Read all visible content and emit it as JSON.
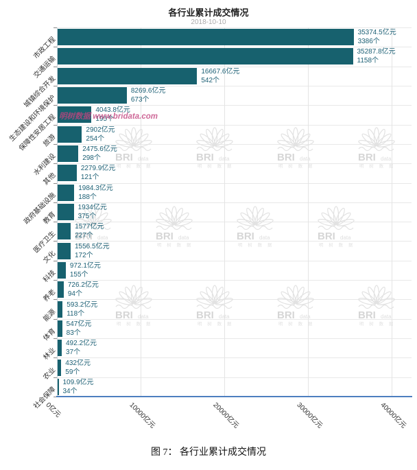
{
  "caption": "图 7： 各行业累计成交情况",
  "watermark": {
    "logo_text_bold": "BRI",
    "logo_text_light": "data",
    "logo_subtext": "明 树 数 据",
    "diagonal_text": "明树数据 www.bridata.com",
    "logo_color": "#e0e0e0",
    "diagonal_color": "#c2437e"
  },
  "style": {
    "bar_color": "#17616e",
    "value_label_color": "#1d6075",
    "axis_line_color": "#4d7ebf",
    "grid_color": "#e8e8e8"
  },
  "chart_data": {
    "type": "bar",
    "orientation": "horizontal",
    "title": "各行业累计成交情况",
    "subtitle": "2018-10-10",
    "value_unit": "亿元",
    "count_unit": "个",
    "xlim": [
      0,
      40000
    ],
    "x_ticks": [
      0,
      10000,
      20000,
      30000,
      40000
    ],
    "x_tick_labels": [
      "0亿元",
      "10000亿元",
      "20000亿元",
      "30000亿元",
      "40000亿元"
    ],
    "grid": true,
    "legend": false,
    "categories": [
      "市政工程",
      "交通运输",
      "城镇综合开发",
      "生态建设和环境保护",
      "保障性安居工程",
      "旅游",
      "水利建设",
      "其他",
      "政府基础设施",
      "教育",
      "医疗卫生",
      "文化",
      "科技",
      "养老",
      "能源",
      "体育",
      "林业",
      "农业",
      "社会保障"
    ],
    "bars": [
      {
        "category": "市政工程",
        "value": 35374.5,
        "count": 3386,
        "value_label": "35374.5亿元",
        "count_label": "3386个"
      },
      {
        "category": "交通运输",
        "value": 35287.8,
        "count": 1158,
        "value_label": "35287.8亿元",
        "count_label": "1158个"
      },
      {
        "category": "城镇综合开发",
        "value": 16667.6,
        "count": 542,
        "value_label": "16667.6亿元",
        "count_label": "542个"
      },
      {
        "category": "生态建设和环境保护",
        "value": 8269.6,
        "count": 673,
        "value_label": "8269.6亿元",
        "count_label": "673个"
      },
      {
        "category": "保障性安居工程",
        "value": 4043.8,
        "count": 195,
        "value_label": "4043.8亿元",
        "count_label": "195个"
      },
      {
        "category": "旅游",
        "value": 2902,
        "count": 254,
        "value_label": "2902亿元",
        "count_label": "254个"
      },
      {
        "category": "水利建设",
        "value": 2475.6,
        "count": 298,
        "value_label": "2475.6亿元",
        "count_label": "298个"
      },
      {
        "category": "其他",
        "value": 2279.9,
        "count": 121,
        "value_label": "2279.9亿元",
        "count_label": "121个"
      },
      {
        "category": "政府基础设施",
        "value": 1984.3,
        "count": 188,
        "value_label": "1984.3亿元",
        "count_label": "188个"
      },
      {
        "category": "教育",
        "value": 1934,
        "count": 375,
        "value_label": "1934亿元",
        "count_label": "375个"
      },
      {
        "category": "医疗卫生",
        "value": 1577,
        "count": 227,
        "value_label": "1577亿元",
        "count_label": "227个"
      },
      {
        "category": "文化",
        "value": 1556.5,
        "count": 172,
        "value_label": "1556.5亿元",
        "count_label": "172个"
      },
      {
        "category": "科技",
        "value": 972.1,
        "count": 155,
        "value_label": "972.1亿元",
        "count_label": "155个"
      },
      {
        "category": "养老",
        "value": 726.2,
        "count": 94,
        "value_label": "726.2亿元",
        "count_label": "94个"
      },
      {
        "category": "能源",
        "value": 593.2,
        "count": 118,
        "value_label": "593.2亿元",
        "count_label": "118个"
      },
      {
        "category": "体育",
        "value": 547,
        "count": 83,
        "value_label": "547亿元",
        "count_label": "83个"
      },
      {
        "category": "林业",
        "value": 492.2,
        "count": 37,
        "value_label": "492.2亿元",
        "count_label": "37个"
      },
      {
        "category": "农业",
        "value": 432,
        "count": 59,
        "value_label": "432亿元",
        "count_label": "59个"
      },
      {
        "category": "社会保障",
        "value": 109.9,
        "count": 34,
        "value_label": "109.9亿元",
        "count_label": "34个"
      }
    ]
  }
}
